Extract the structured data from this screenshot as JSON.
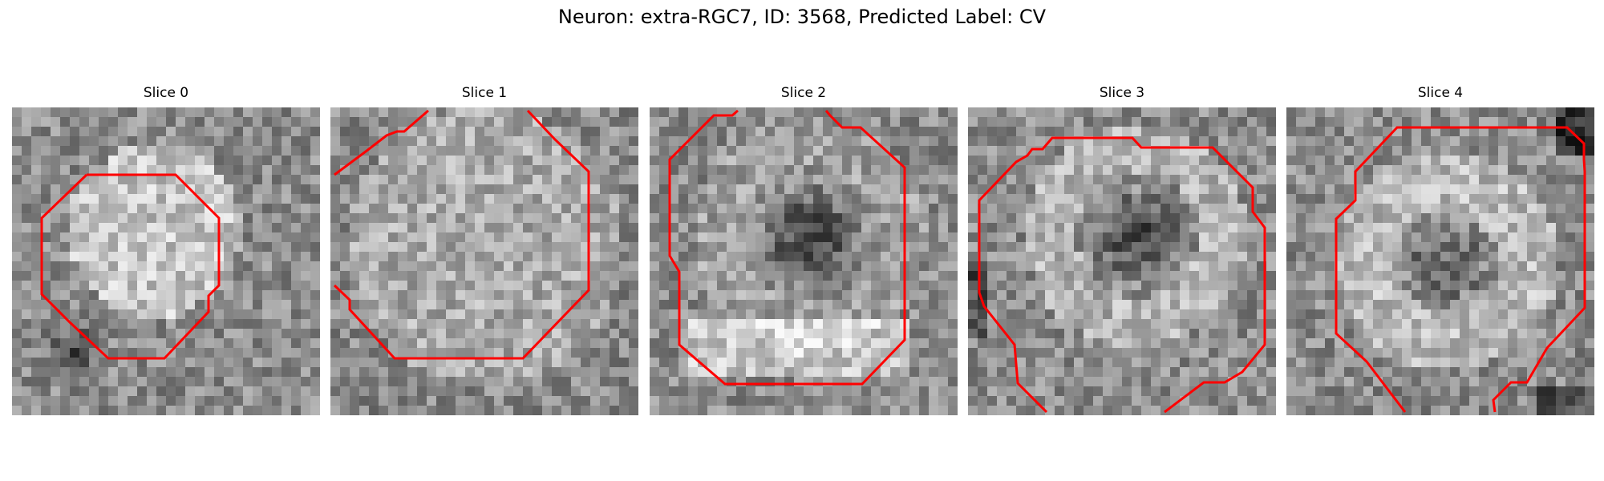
{
  "figure": {
    "title": "Neuron: extra-RGC7, ID: 3568, Predicted Label: CV",
    "contour_color": "#ff0000",
    "image_colormap": "grayscale",
    "image_grid": 32
  },
  "panels": [
    {
      "title": "Slice 0",
      "image_description": "bright cell body centered, dark spot lower-left"
    },
    {
      "title": "Slice 1",
      "image_description": "large mottled bright region filling most of frame"
    },
    {
      "title": "Slice 2",
      "image_description": "dark core center with bright ring, bright lower band"
    },
    {
      "title": "Slice 3",
      "image_description": "dark core center-right surrounded by bright ring"
    },
    {
      "title": "Slice 4",
      "image_description": "bright annulus with darker center, dark top-right corner"
    }
  ]
}
